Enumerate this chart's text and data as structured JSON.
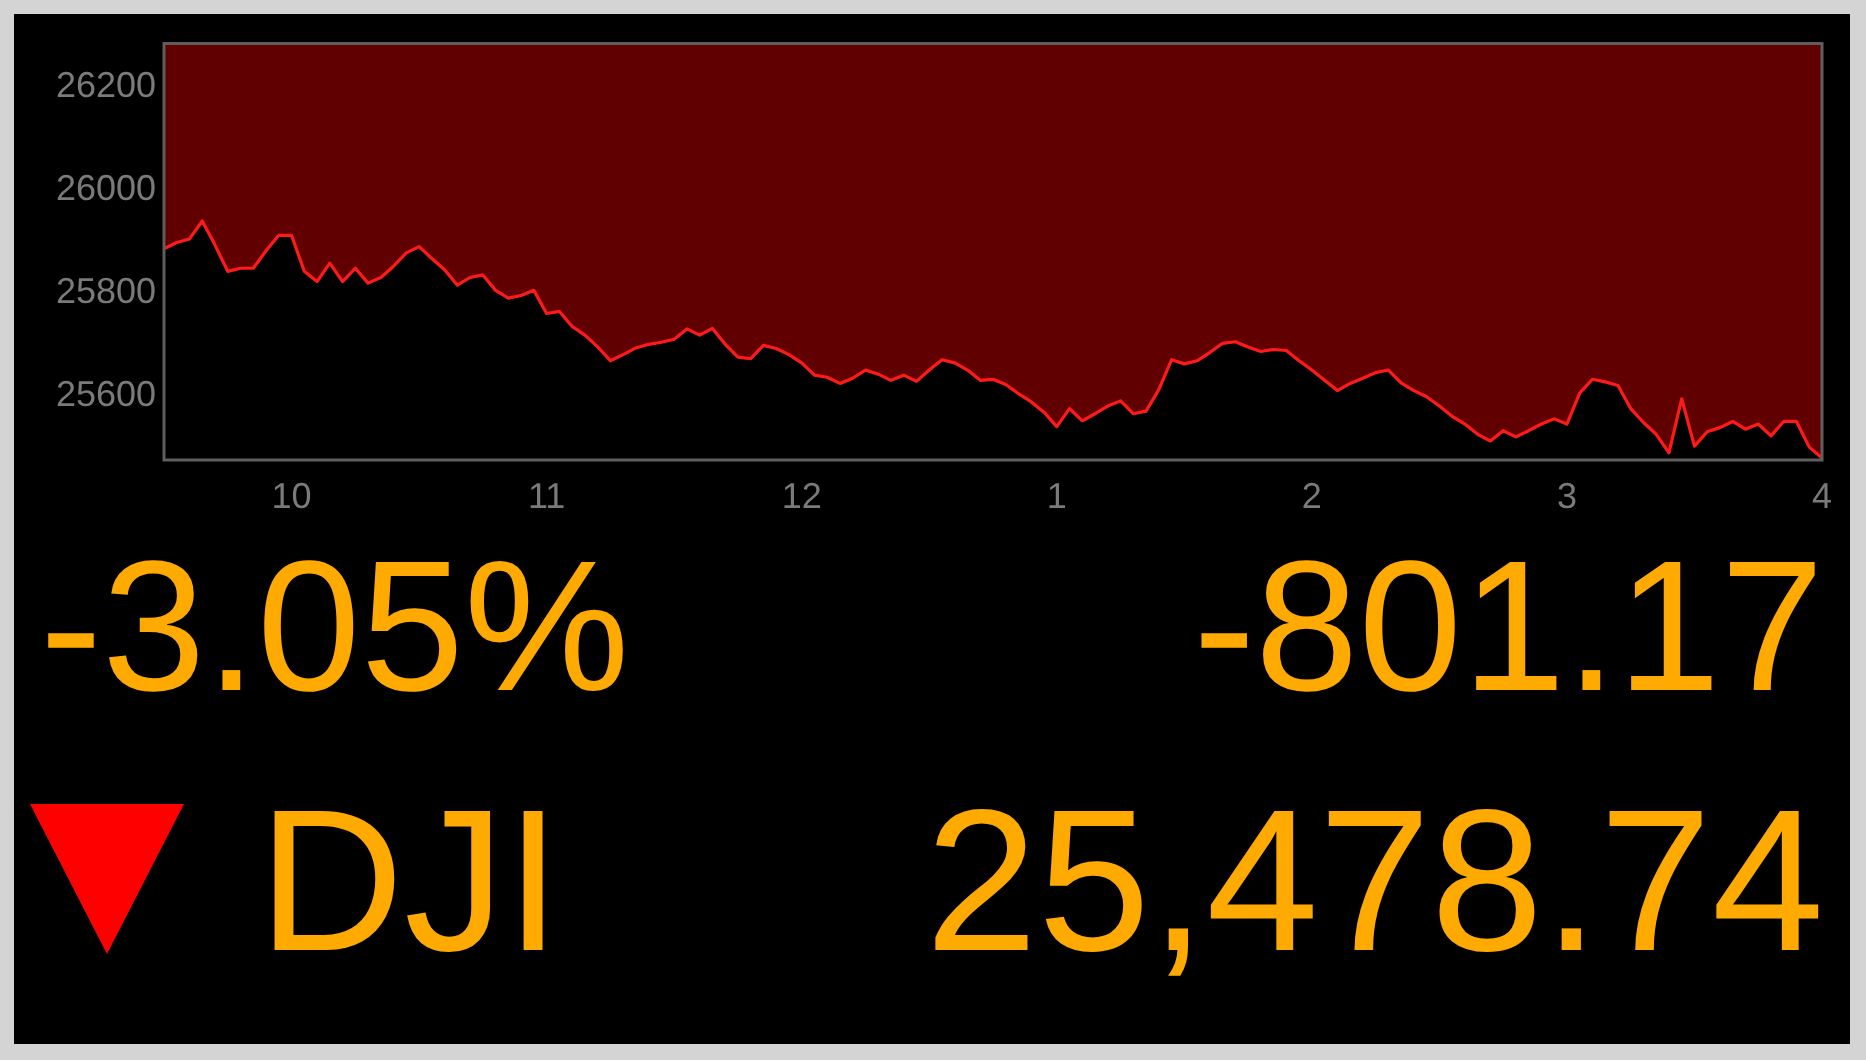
{
  "chart_data": {
    "type": "area",
    "title": "DJI",
    "annotations": [
      "-3.05%",
      "-801.17",
      "25,478.74"
    ],
    "categories": [
      null,
      null,
      null,
      null,
      null,
      null,
      null,
      null,
      null,
      null,
      "10",
      null,
      null,
      null,
      null,
      null,
      null,
      null,
      null,
      null,
      null,
      null,
      null,
      null,
      null,
      null,
      null,
      null,
      null,
      null,
      "11",
      null,
      null,
      null,
      null,
      null,
      null,
      null,
      null,
      null,
      null,
      null,
      null,
      null,
      null,
      null,
      null,
      null,
      null,
      null,
      "12",
      null,
      null,
      null,
      null,
      null,
      null,
      null,
      null,
      null,
      null,
      null,
      null,
      null,
      null,
      null,
      null,
      null,
      null,
      null,
      "1",
      null,
      null,
      null,
      null,
      null,
      null,
      null,
      null,
      null,
      null,
      null,
      null,
      null,
      null,
      null,
      null,
      null,
      null,
      null,
      "2",
      null,
      null,
      null,
      null,
      null,
      null,
      null,
      null,
      null,
      null,
      null,
      null,
      null,
      null,
      null,
      null,
      null,
      null,
      null,
      "3",
      null,
      null,
      null,
      null,
      null,
      null,
      null,
      null,
      null,
      null,
      null,
      null,
      null,
      null,
      null,
      null,
      null,
      null,
      null,
      "4"
    ],
    "values": [
      25886,
      25898,
      25905,
      25940,
      25893,
      25842,
      25848,
      25848,
      25882,
      25912,
      25912,
      25842,
      25822,
      25858,
      25822,
      25848,
      25819,
      25830,
      25852,
      25878,
      25890,
      25867,
      25845,
      25815,
      25830,
      25835,
      25805,
      25790,
      25795,
      25805,
      25760,
      25764,
      25735,
      25718,
      25695,
      25668,
      25680,
      25693,
      25700,
      25704,
      25710,
      25730,
      25718,
      25731,
      25700,
      25675,
      25672,
      25698,
      25692,
      25680,
      25664,
      25640,
      25636,
      25624,
      25634,
      25650,
      25642,
      25630,
      25640,
      25628,
      25650,
      25670,
      25664,
      25650,
      25630,
      25632,
      25622,
      25604,
      25588,
      25568,
      25540,
      25575,
      25551,
      25565,
      25580,
      25590,
      25565,
      25570,
      25612,
      25670,
      25662,
      25668,
      25684,
      25702,
      25705,
      25695,
      25686,
      25690,
      25688,
      25668,
      25650,
      25630,
      25610,
      25624,
      25634,
      25645,
      25650,
      25625,
      25610,
      25598,
      25580,
      25560,
      25545,
      25525,
      25512,
      25532,
      25520,
      25532,
      25545,
      25555,
      25545,
      25605,
      25632,
      25627,
      25620,
      25575,
      25548,
      25525,
      25489,
      25594,
      25502,
      25530,
      25538,
      25550,
      25535,
      25545,
      25522,
      25550,
      25550,
      25500,
      25479
    ],
    "color": "#ff1a1a",
    "ylim": [
      25475,
      26285
    ],
    "yticks": [
      25600,
      25800,
      26000,
      26200
    ]
  }
}
